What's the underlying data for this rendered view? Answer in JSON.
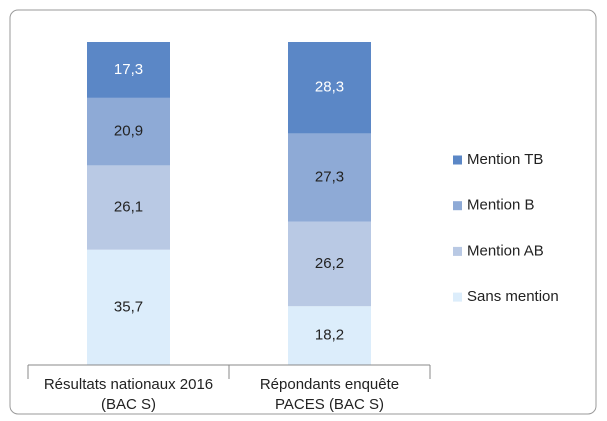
{
  "chart_data": {
    "type": "stacked_bar",
    "categories": [
      [
        "Résultats nationaux 2016",
        "(BAC S)"
      ],
      [
        "Répondants enquête",
        "PACES (BAC S)"
      ]
    ],
    "series": [
      {
        "name": "Sans mention",
        "color": "#dcedfb",
        "label_color": "#222222",
        "values": [
          35.7,
          18.2
        ],
        "value_labels": [
          "35,7",
          "18,2"
        ]
      },
      {
        "name": "Mention AB",
        "color": "#b9c9e4",
        "label_color": "#222222",
        "values": [
          26.1,
          26.2
        ],
        "value_labels": [
          "26,1",
          "26,2"
        ]
      },
      {
        "name": "Mention B",
        "color": "#8eaad6",
        "label_color": "#222222",
        "values": [
          20.9,
          27.3
        ],
        "value_labels": [
          "20,9",
          "27,3"
        ]
      },
      {
        "name": "Mention TB",
        "color": "#5b87c6",
        "label_color": "#ffffff",
        "values": [
          17.3,
          28.3
        ],
        "value_labels": [
          "17,3",
          "28,3"
        ]
      }
    ],
    "legend": "right"
  }
}
